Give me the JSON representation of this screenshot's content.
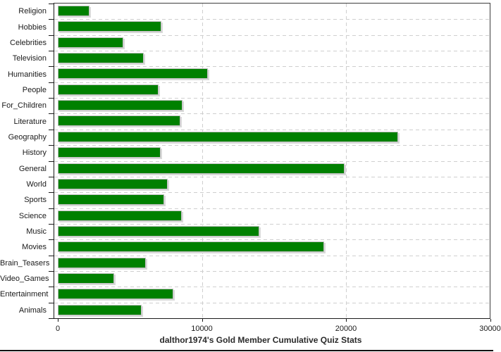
{
  "chart_data": {
    "type": "bar",
    "orientation": "horizontal",
    "title": "dalthor1974's Gold Member Cumulative Quiz Stats",
    "categories": [
      "Religion",
      "Hobbies",
      "Celebrities",
      "Television",
      "Humanities",
      "People",
      "For_Children",
      "Literature",
      "Geography",
      "History",
      "General",
      "World",
      "Sports",
      "Science",
      "Music",
      "Movies",
      "Brain_Teasers",
      "Video_Games",
      "Entertainment",
      "Animals"
    ],
    "values": [
      2200,
      7200,
      4550,
      5950,
      10400,
      7000,
      8650,
      8500,
      23600,
      7150,
      19900,
      7650,
      7400,
      8600,
      14000,
      18500,
      6100,
      3900,
      8000,
      5800
    ],
    "xlim": [
      0,
      30000
    ],
    "x_ticks": [
      0,
      10000,
      20000,
      30000
    ],
    "x_tick_labels": [
      "0",
      "10000",
      "20000",
      "30000"
    ],
    "grid": "dashed",
    "legend": "none",
    "colors": {
      "bar_fill": "#008000",
      "bar_outline": "#bfbfbf",
      "bar_shadow": "#d9d9d9",
      "gridline": "#cfcfcf",
      "frame": "#3c3c3c",
      "axis": "#1a1a1a",
      "text": "#1a1a1a",
      "background": "#ffffff"
    }
  }
}
